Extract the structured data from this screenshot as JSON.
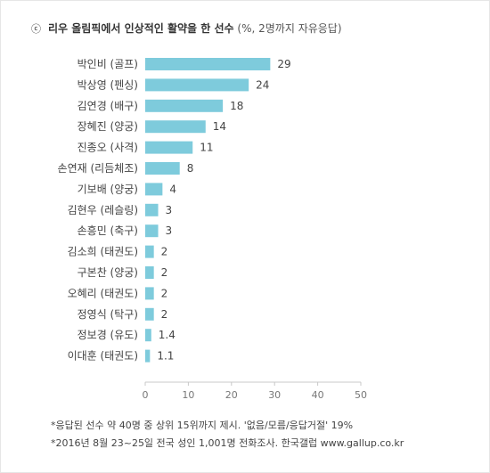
{
  "title": {
    "marker": "ⓒ",
    "main": "리우 올림픽에서 인상적인 활약을 한 선수",
    "sub": "(%, 2명까지 자유응답)"
  },
  "colors": {
    "bar": "#7ecbdc",
    "axis": "#c8c8c8",
    "text": "#444444"
  },
  "chart_data": {
    "type": "bar",
    "orientation": "horizontal",
    "categories": [
      "박인비 (골프)",
      "박상영 (펜싱)",
      "김연경 (배구)",
      "장혜진 (양궁)",
      "진종오 (사격)",
      "손연재 (리듬체조)",
      "기보배 (양궁)",
      "김현우 (레슬링)",
      "손흥민 (축구)",
      "김소희 (태권도)",
      "구본찬 (양궁)",
      "오혜리 (태권도)",
      "정영식 (탁구)",
      "정보경 (유도)",
      "이대훈 (태권도)"
    ],
    "values": [
      29,
      24,
      18,
      14,
      11,
      8,
      4,
      3,
      3,
      2,
      2,
      2,
      2,
      1.4,
      1.1
    ],
    "xlim": [
      0,
      50
    ],
    "xticks": [
      0,
      10,
      20,
      30,
      40,
      50
    ],
    "grid": false
  },
  "notes": [
    "*응답된 선수 약 40명 중 상위 15위까지 제시. '없음/모름/응답거절' 19%",
    "*2016년 8월 23~25일 전국 성인 1,001명 전화조사. 한국갤럽 www.gallup.co.kr"
  ]
}
